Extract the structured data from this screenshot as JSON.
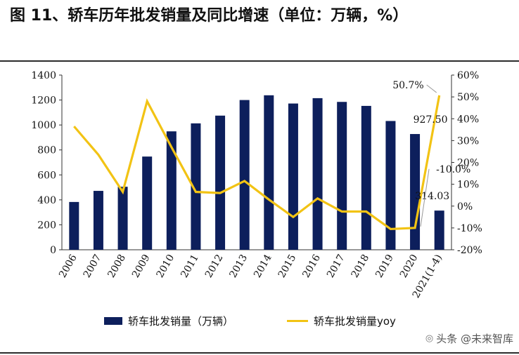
{
  "title": "图 11、轿车历年批发销量及同比增速（单位：万辆，%）",
  "chart_data": {
    "type": "bar+line",
    "categories": [
      "2006",
      "2007",
      "2008",
      "2009",
      "2010",
      "2011",
      "2012",
      "2013",
      "2014",
      "2015",
      "2016",
      "2017",
      "2018",
      "2019",
      "2020",
      "2021(1-4)"
    ],
    "series": [
      {
        "name": "轿车批发销量（万辆）",
        "type": "bar",
        "axis": "left",
        "color": "#0d1f5c",
        "values": [
          383,
          472,
          505,
          747,
          949,
          1013,
          1075,
          1200,
          1238,
          1172,
          1215,
          1185,
          1153,
          1032,
          927.5,
          314.03
        ]
      },
      {
        "name": "轿车批发销量yoy",
        "type": "line",
        "axis": "right",
        "color": "#f2c314",
        "values": [
          36.5,
          23.5,
          6.5,
          48,
          27,
          6.5,
          6,
          11.5,
          3,
          -5,
          3.5,
          -2.5,
          -2.5,
          -10.5,
          -10.0,
          50.7
        ]
      }
    ],
    "y_left": {
      "min": 0,
      "max": 1400,
      "ticks": [
        "0",
        "200",
        "400",
        "600",
        "800",
        "1000",
        "1200",
        "1400"
      ]
    },
    "y_right": {
      "min": -20,
      "max": 60,
      "ticks": [
        "-20%",
        "-10%",
        "0%",
        "10%",
        "20%",
        "30%",
        "40%",
        "50%",
        "60%"
      ]
    },
    "data_labels": [
      {
        "text": "927.50",
        "series": 0,
        "index": 14
      },
      {
        "text": "314.03",
        "series": 0,
        "index": 15
      },
      {
        "text": "-10.0%",
        "series": 1,
        "index": 14
      },
      {
        "text": "50.7%",
        "series": 1,
        "index": 15
      }
    ],
    "legend": [
      "轿车批发销量（万辆）",
      "轿车批发销量yoy"
    ],
    "legend_position": "bottom",
    "grid": false
  },
  "watermark": "头条 @未来智库"
}
